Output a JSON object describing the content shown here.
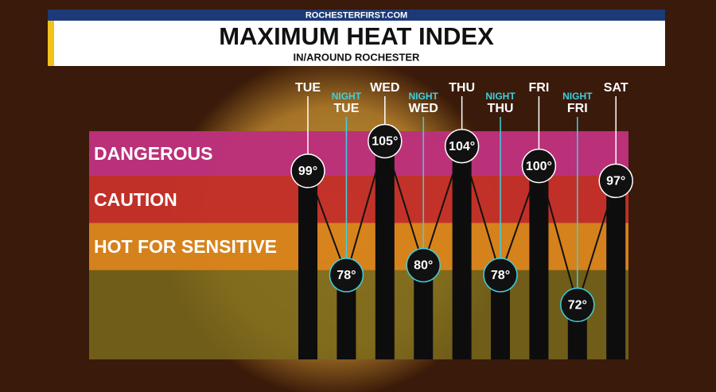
{
  "header": {
    "source": "ROCHESTERFIRST.COM"
  },
  "chart_data": {
    "type": "bar",
    "title": "MAXIMUM HEAT INDEX",
    "subtitle": "IN/AROUND ROCHESTER",
    "categories": [
      "TUE",
      "TUE",
      "WED",
      "WED",
      "THU",
      "THU",
      "FRI",
      "FRI",
      "SAT"
    ],
    "night_labels": [
      null,
      "NIGHT",
      null,
      "NIGHT",
      null,
      "NIGHT",
      null,
      "NIGHT",
      null
    ],
    "values": [
      99,
      78,
      105,
      80,
      104,
      78,
      100,
      72,
      97
    ],
    "value_labels": [
      "99°",
      "78°",
      "105°",
      "80°",
      "104°",
      "78°",
      "100°",
      "72°",
      "97°"
    ],
    "color": "#0d0d0d",
    "day_color": "#ffffff",
    "night_color": "#3fd0e0",
    "ylim": [
      61,
      107
    ],
    "zones": [
      {
        "label": "DANGEROUS",
        "from": 98,
        "to": 107,
        "color": "#c42a86"
      },
      {
        "label": "CAUTION",
        "from": 88.5,
        "to": 98,
        "color": "#cc2a2a"
      },
      {
        "label": "HOT FOR SENSITIVE",
        "from": 79,
        "to": 88.5,
        "color": "#e3861c"
      }
    ]
  }
}
